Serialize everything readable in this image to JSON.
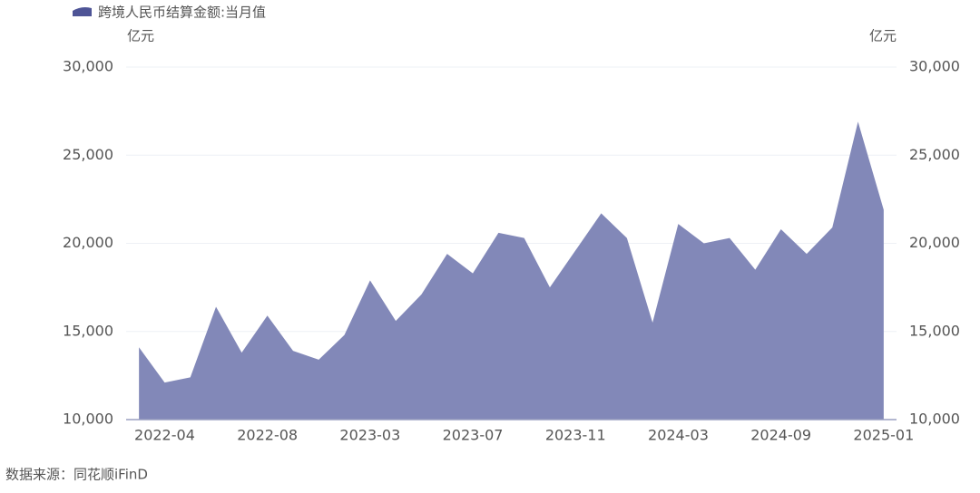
{
  "chart_data": {
    "type": "area",
    "legend": "跨境人民币结算金额:当月值",
    "y_unit": "亿元",
    "y2_unit": "亿元",
    "source": "数据来源：同花顺iFinD",
    "color": "#8288b8",
    "legend_color": "#4e5496",
    "categories": [
      null,
      "2022-04",
      null,
      null,
      null,
      "2022-08",
      null,
      null,
      null,
      "2023-03",
      null,
      null,
      null,
      "2023-07",
      null,
      null,
      null,
      "2023-11",
      null,
      null,
      null,
      "2024-03",
      null,
      null,
      null,
      "2024-09",
      null,
      null,
      null,
      "2025-01"
    ],
    "values": [
      14100,
      12100,
      12400,
      16400,
      13800,
      15900,
      13900,
      13400,
      14800,
      17900,
      15600,
      17100,
      19400,
      18300,
      20600,
      20300,
      17500,
      19600,
      21700,
      20300,
      15500,
      21100,
      20000,
      20300,
      18500,
      20800,
      19400,
      20900,
      26900,
      21900
    ],
    "ylim": [
      10000,
      30000
    ],
    "yticks": [
      {
        "value": 10000,
        "label": "10,000"
      },
      {
        "value": 15000,
        "label": "15,000"
      },
      {
        "value": 20000,
        "label": "20,000"
      },
      {
        "value": 25000,
        "label": "25,000"
      },
      {
        "value": 30000,
        "label": "30,000"
      }
    ],
    "y2lim": [
      10000,
      30000
    ],
    "y2ticks": [
      {
        "value": 10000,
        "label": "10,000"
      },
      {
        "value": 15000,
        "label": "15,000"
      },
      {
        "value": 20000,
        "label": "20,000"
      },
      {
        "value": 25000,
        "label": "25,000"
      },
      {
        "value": 30000,
        "label": "30,000"
      }
    ],
    "grid": true
  }
}
